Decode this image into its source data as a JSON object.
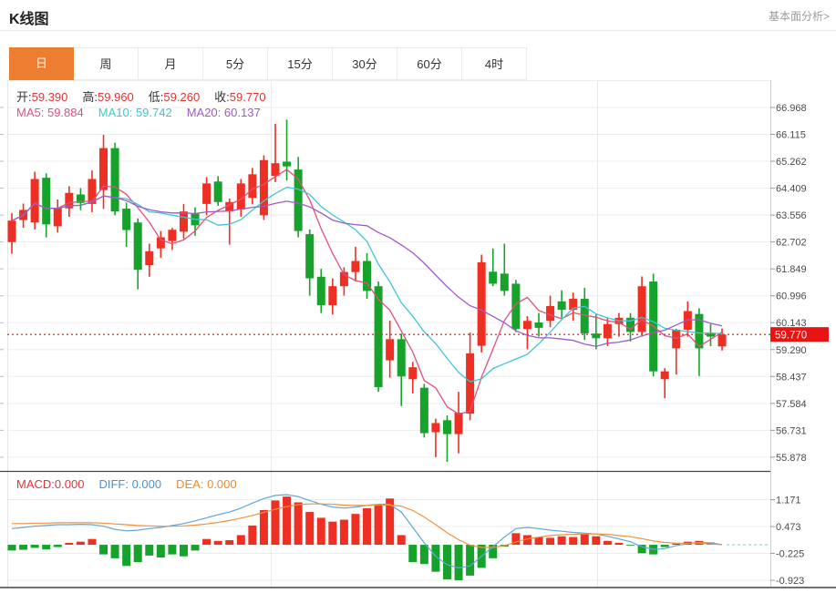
{
  "header": {
    "title": "K线图",
    "link": "基本面分析>"
  },
  "tabs": {
    "items": [
      "日",
      "周",
      "月",
      "5分",
      "15分",
      "30分",
      "60分",
      "4时"
    ],
    "names": [
      "tab-day",
      "tab-week",
      "tab-month",
      "tab-5min",
      "tab-15min",
      "tab-30min",
      "tab-60min",
      "tab-4hour"
    ],
    "active_index": 0,
    "active_color": "#ED7D31"
  },
  "info": {
    "open_label": "开:",
    "open": "59.390",
    "high_label": "高:",
    "high": "59.960",
    "low_label": "低:",
    "low": "59.260",
    "close_label": "收:",
    "close": "59.770",
    "ma5_label": "MA5:",
    "ma5": "59.884",
    "ma10_label": "MA10:",
    "ma10": "59.742",
    "ma20_label": "MA20:",
    "ma20": "60.137"
  },
  "macd_info": {
    "macd_label": "MACD:",
    "macd": "0.000",
    "diff_label": "DIFF:",
    "diff": "0.000",
    "dea_label": "DEA:",
    "dea": "0.000"
  },
  "colors": {
    "up": "#ee2f24",
    "down": "#17a32b",
    "ma5": "#e0517a",
    "ma10": "#3fc6d4",
    "ma20": "#a05ac8",
    "value_red": "#e23535",
    "diff_blue": "#4a90d9",
    "dea_orange": "#ef8b2a",
    "diff_line": "#5fa8dc",
    "dea_line": "#f0923c",
    "badge_bg": "#e81414",
    "badge_text": "#ffffff",
    "dotted_line": "#e0392e",
    "zero_dash": "#7fd0df",
    "grid": "#ededed",
    "axis": "#cfcfcf",
    "tick_text": "#4a4a4a",
    "panel_border": "#444444",
    "tab_active_bg": "#ED7D31",
    "tab_active_text": "#ffffff"
  },
  "chart_data": {
    "type": "candlestick+macd",
    "title": "K线图",
    "main": {
      "y_ticks": [
        "66.968",
        "66.115",
        "65.262",
        "64.409",
        "63.556",
        "62.702",
        "61.849",
        "60.996",
        "60.143",
        "59.290",
        "58.437",
        "57.584",
        "56.731",
        "55.878"
      ],
      "last_price": "59.770",
      "ma_periods": [
        5,
        10,
        20
      ],
      "candles": [
        [
          62.7,
          63.62,
          62.33,
          63.38
        ],
        [
          63.4,
          63.92,
          63.15,
          63.72
        ],
        [
          63.32,
          64.93,
          63.1,
          64.7
        ],
        [
          64.74,
          64.88,
          62.85,
          63.26
        ],
        [
          63.2,
          64.05,
          63.0,
          63.79
        ],
        [
          63.77,
          64.47,
          63.5,
          64.26
        ],
        [
          64.21,
          64.41,
          63.71,
          63.94
        ],
        [
          63.91,
          64.97,
          63.65,
          64.7
        ],
        [
          64.35,
          66.1,
          63.75,
          65.68
        ],
        [
          65.68,
          65.85,
          63.55,
          63.67
        ],
        [
          63.76,
          63.95,
          62.55,
          63.08
        ],
        [
          63.32,
          63.45,
          61.2,
          61.82
        ],
        [
          61.97,
          62.65,
          61.6,
          62.41
        ],
        [
          62.5,
          63.05,
          62.2,
          62.85
        ],
        [
          62.73,
          63.15,
          62.45,
          63.09
        ],
        [
          63.03,
          63.91,
          62.8,
          63.67
        ],
        [
          63.62,
          63.8,
          62.9,
          63.23
        ],
        [
          63.91,
          64.76,
          63.55,
          64.56
        ],
        [
          64.62,
          64.79,
          63.85,
          63.97
        ],
        [
          63.67,
          64.08,
          62.62,
          63.97
        ],
        [
          63.73,
          64.7,
          63.5,
          64.56
        ],
        [
          64.1,
          65.05,
          63.9,
          64.85
        ],
        [
          63.55,
          65.45,
          63.4,
          65.3
        ],
        [
          64.8,
          66.45,
          64.6,
          65.2
        ],
        [
          65.25,
          66.58,
          64.65,
          65.1
        ],
        [
          65.0,
          65.4,
          62.85,
          63.05
        ],
        [
          62.95,
          63.1,
          61.0,
          61.55
        ],
        [
          61.6,
          61.85,
          60.45,
          60.7
        ],
        [
          60.7,
          61.55,
          60.4,
          61.3
        ],
        [
          61.3,
          61.9,
          61.0,
          61.75
        ],
        [
          61.75,
          62.55,
          61.45,
          62.1
        ],
        [
          62.1,
          62.35,
          60.9,
          61.15
        ],
        [
          61.3,
          61.45,
          57.95,
          58.1
        ],
        [
          58.95,
          60.21,
          58.4,
          59.62
        ],
        [
          59.62,
          59.8,
          57.5,
          58.44
        ],
        [
          58.35,
          58.9,
          57.9,
          58.73
        ],
        [
          58.08,
          58.2,
          56.5,
          56.64
        ],
        [
          56.67,
          57.1,
          55.88,
          56.96
        ],
        [
          57.05,
          57.2,
          55.73,
          56.61
        ],
        [
          56.61,
          57.95,
          56.0,
          57.29
        ],
        [
          57.26,
          59.83,
          57.05,
          59.17
        ],
        [
          59.41,
          62.3,
          59.2,
          62.06
        ],
        [
          61.76,
          62.5,
          61.3,
          61.38
        ],
        [
          61.7,
          62.65,
          61.0,
          61.15
        ],
        [
          61.38,
          61.5,
          59.85,
          59.94
        ],
        [
          59.94,
          60.35,
          59.3,
          60.2
        ],
        [
          60.15,
          60.45,
          59.7,
          59.98
        ],
        [
          60.2,
          61.0,
          60.0,
          60.67
        ],
        [
          60.82,
          61.17,
          60.3,
          60.55
        ],
        [
          60.55,
          61.1,
          60.2,
          60.9
        ],
        [
          60.9,
          61.25,
          59.6,
          59.8
        ],
        [
          59.8,
          60.4,
          59.3,
          59.65
        ],
        [
          59.65,
          60.3,
          59.4,
          60.1
        ],
        [
          60.1,
          60.45,
          59.7,
          60.3
        ],
        [
          60.3,
          60.45,
          59.55,
          59.85
        ],
        [
          59.85,
          61.61,
          59.7,
          61.3
        ],
        [
          61.45,
          61.7,
          58.44,
          58.6
        ],
        [
          58.35,
          58.7,
          57.75,
          58.6
        ],
        [
          59.33,
          59.95,
          58.5,
          59.92
        ],
        [
          59.92,
          60.82,
          59.7,
          60.51
        ],
        [
          60.42,
          60.6,
          58.45,
          59.33
        ],
        [
          59.8,
          60.1,
          59.4,
          59.7
        ],
        [
          59.39,
          59.96,
          59.26,
          59.77
        ]
      ]
    },
    "macd": {
      "y_ticks": [
        "1.171",
        "0.473",
        "-0.225",
        "-0.923"
      ],
      "histogram": [
        -0.15,
        -0.13,
        -0.08,
        -0.12,
        -0.06,
        0.05,
        0.08,
        0.15,
        -0.25,
        -0.35,
        -0.55,
        -0.45,
        -0.28,
        -0.33,
        -0.25,
        -0.3,
        -0.15,
        0.15,
        0.1,
        0.12,
        0.25,
        0.5,
        0.9,
        1.15,
        1.25,
        1.1,
        0.85,
        0.7,
        0.6,
        0.65,
        0.8,
        0.95,
        1.05,
        1.2,
        0.25,
        -0.45,
        -0.5,
        -0.7,
        -0.9,
        -0.92,
        -0.8,
        -0.6,
        -0.35,
        -0.05,
        0.3,
        0.25,
        0.2,
        0.18,
        0.22,
        0.2,
        0.28,
        0.22,
        0.1,
        0.05,
        -0.02,
        -0.22,
        -0.25,
        -0.06,
        0.03,
        0.08,
        0.1,
        0.06,
        0.0
      ],
      "diff": [
        0.42,
        0.45,
        0.48,
        0.5,
        0.52,
        0.52,
        0.53,
        0.52,
        0.48,
        0.4,
        0.36,
        0.38,
        0.42,
        0.45,
        0.5,
        0.55,
        0.62,
        0.7,
        0.78,
        0.85,
        0.95,
        1.08,
        1.2,
        1.28,
        1.3,
        1.25,
        1.15,
        1.05,
        0.98,
        0.95,
        0.98,
        1.02,
        1.05,
        1.05,
        0.85,
        0.45,
        0.05,
        -0.3,
        -0.52,
        -0.6,
        -0.55,
        -0.3,
        -0.05,
        0.2,
        0.42,
        0.45,
        0.42,
        0.38,
        0.35,
        0.32,
        0.3,
        0.28,
        0.22,
        0.15,
        0.08,
        -0.05,
        -0.12,
        -0.1,
        -0.02,
        0.03,
        0.06,
        0.05,
        0.0
      ],
      "dea": [
        0.55,
        0.55,
        0.56,
        0.56,
        0.57,
        0.57,
        0.57,
        0.57,
        0.56,
        0.54,
        0.52,
        0.5,
        0.49,
        0.48,
        0.48,
        0.49,
        0.51,
        0.54,
        0.58,
        0.63,
        0.69,
        0.76,
        0.84,
        0.92,
        0.99,
        1.04,
        1.06,
        1.06,
        1.05,
        1.03,
        1.02,
        1.02,
        1.03,
        1.03,
        1.0,
        0.89,
        0.72,
        0.52,
        0.31,
        0.13,
        -0.01,
        -0.07,
        -0.07,
        -0.02,
        0.07,
        0.15,
        0.2,
        0.24,
        0.26,
        0.27,
        0.28,
        0.28,
        0.27,
        0.24,
        0.21,
        0.16,
        0.1,
        0.06,
        0.04,
        0.04,
        0.04,
        0.02,
        0.0
      ]
    }
  }
}
